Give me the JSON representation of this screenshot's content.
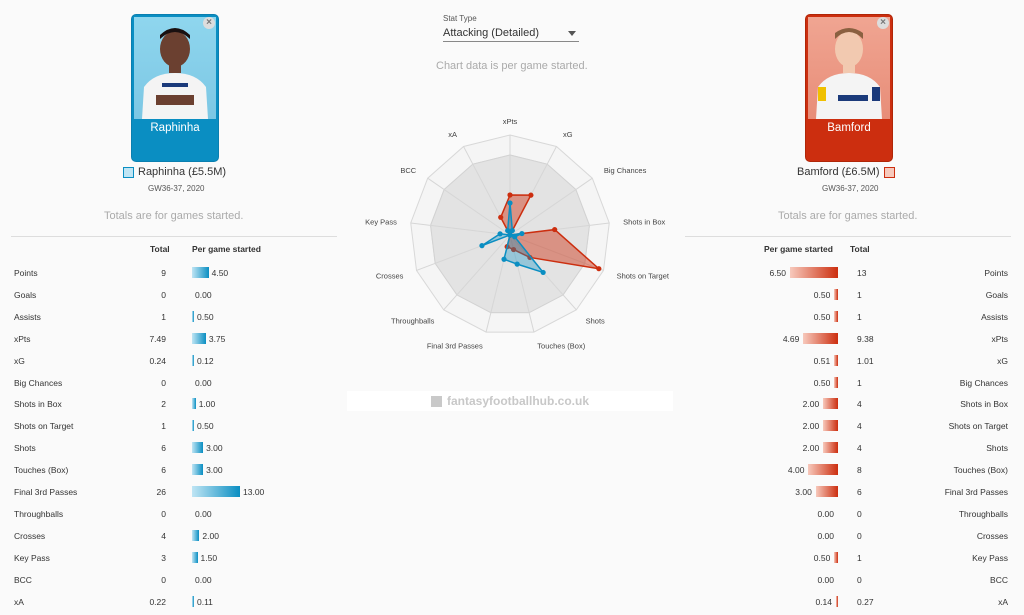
{
  "dropdown": {
    "label": "Stat Type",
    "value": "Attacking (Detailed)"
  },
  "note_top": "Chart data is per game started.",
  "note_totals": "Totals are for games started.",
  "colors": {
    "left": "#0a8ec2",
    "right": "#cc2e0f"
  },
  "left": {
    "name": "Raphinha",
    "label": "Raphinha (£5.5M)",
    "gw": "GW36-37, 2020",
    "close": "×",
    "col_total": "Total",
    "col_pgs": "Per game started"
  },
  "right": {
    "name": "Bamford",
    "label": "Bamford (£6.5M)",
    "gw": "GW36-37, 2020",
    "close": "×",
    "col_total": "Total",
    "col_pgs": "Per game started"
  },
  "left_rows": [
    {
      "stat": "Points",
      "total": "9",
      "pgs": "4.50",
      "val": 4.5
    },
    {
      "stat": "Goals",
      "total": "0",
      "pgs": "0.00",
      "val": 0
    },
    {
      "stat": "Assists",
      "total": "1",
      "pgs": "0.50",
      "val": 0.5
    },
    {
      "stat": "xPts",
      "total": "7.49",
      "pgs": "3.75",
      "val": 3.75
    },
    {
      "stat": "xG",
      "total": "0.24",
      "pgs": "0.12",
      "val": 0.12
    },
    {
      "stat": "Big Chances",
      "total": "0",
      "pgs": "0.00",
      "val": 0
    },
    {
      "stat": "Shots in Box",
      "total": "2",
      "pgs": "1.00",
      "val": 1.0
    },
    {
      "stat": "Shots on Target",
      "total": "1",
      "pgs": "0.50",
      "val": 0.5
    },
    {
      "stat": "Shots",
      "total": "6",
      "pgs": "3.00",
      "val": 3.0
    },
    {
      "stat": "Touches (Box)",
      "total": "6",
      "pgs": "3.00",
      "val": 3.0
    },
    {
      "stat": "Final 3rd Passes",
      "total": "26",
      "pgs": "13.00",
      "val": 13.0
    },
    {
      "stat": "Throughballs",
      "total": "0",
      "pgs": "0.00",
      "val": 0
    },
    {
      "stat": "Crosses",
      "total": "4",
      "pgs": "2.00",
      "val": 2.0
    },
    {
      "stat": "Key Pass",
      "total": "3",
      "pgs": "1.50",
      "val": 1.5
    },
    {
      "stat": "BCC",
      "total": "0",
      "pgs": "0.00",
      "val": 0
    },
    {
      "stat": "xA",
      "total": "0.22",
      "pgs": "0.11",
      "val": 0.11
    }
  ],
  "right_rows": [
    {
      "stat": "Points",
      "total": "13",
      "pgs": "6.50",
      "val": 6.5
    },
    {
      "stat": "Goals",
      "total": "1",
      "pgs": "0.50",
      "val": 0.5
    },
    {
      "stat": "Assists",
      "total": "1",
      "pgs": "0.50",
      "val": 0.5
    },
    {
      "stat": "xPts",
      "total": "9.38",
      "pgs": "4.69",
      "val": 4.69
    },
    {
      "stat": "xG",
      "total": "1.01",
      "pgs": "0.51",
      "val": 0.51
    },
    {
      "stat": "Big Chances",
      "total": "1",
      "pgs": "0.50",
      "val": 0.5
    },
    {
      "stat": "Shots in Box",
      "total": "4",
      "pgs": "2.00",
      "val": 2.0
    },
    {
      "stat": "Shots on Target",
      "total": "4",
      "pgs": "2.00",
      "val": 2.0
    },
    {
      "stat": "Shots",
      "total": "4",
      "pgs": "2.00",
      "val": 2.0
    },
    {
      "stat": "Touches (Box)",
      "total": "8",
      "pgs": "4.00",
      "val": 4.0
    },
    {
      "stat": "Final 3rd Passes",
      "total": "6",
      "pgs": "3.00",
      "val": 3.0
    },
    {
      "stat": "Throughballs",
      "total": "0",
      "pgs": "0.00",
      "val": 0
    },
    {
      "stat": "Crosses",
      "total": "0",
      "pgs": "0.00",
      "val": 0
    },
    {
      "stat": "Key Pass",
      "total": "1",
      "pgs": "0.50",
      "val": 0.5
    },
    {
      "stat": "BCC",
      "total": "0",
      "pgs": "0.00",
      "val": 0
    },
    {
      "stat": "xA",
      "total": "0.27",
      "pgs": "0.14",
      "val": 0.14
    }
  ],
  "chart_data": {
    "type": "radar",
    "axes": [
      "xPts",
      "xG",
      "Big Chances",
      "Shots in Box",
      "Shots on Target",
      "Shots",
      "Touches (Box)",
      "Final 3rd Passes",
      "Throughballs",
      "Crosses",
      "Key Pass",
      "BCC",
      "xA"
    ],
    "rmax": 1,
    "series": [
      {
        "name": "Raphinha",
        "values": [
          0.32,
          0.05,
          0,
          0.12,
          0.05,
          0.5,
          0.3,
          0.25,
          0,
          0.3,
          0.1,
          0,
          0.05
        ]
      },
      {
        "name": "Bamford",
        "values": [
          0.4,
          0.45,
          0,
          0.45,
          0.95,
          0.3,
          0.15,
          0.12,
          0,
          0,
          0,
          0,
          0.2
        ]
      }
    ]
  },
  "brand": "fantasyfootballhub.co.uk"
}
